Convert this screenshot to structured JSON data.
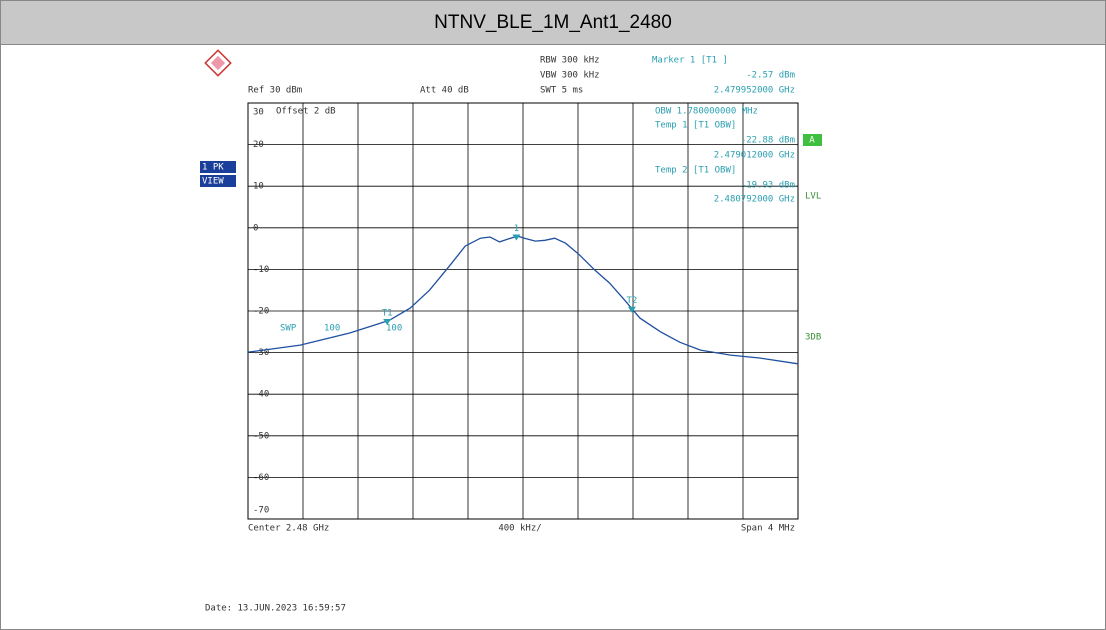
{
  "chart_data": {
    "type": "line",
    "title": "NTNV_BLE_1M_Ant1_2480",
    "xlim": [
      2.478,
      2.482
    ],
    "xticks": [
      2.478,
      2.4784,
      2.4788,
      2.4792,
      2.4796,
      2.48,
      2.4804,
      2.4808,
      2.4812,
      2.4816,
      2.482
    ],
    "ylim": [
      -70,
      30
    ],
    "yticks": [
      30,
      20,
      10,
      0,
      -10,
      -20,
      -30,
      -40,
      -50,
      -60,
      -70
    ],
    "grid": true,
    "series": [
      {
        "color": "#1f4fa0",
        "x": [
          2.478,
          2.47838,
          2.47874,
          2.47903,
          2.47918,
          2.47932,
          2.47947,
          2.47958,
          2.47969,
          2.47976,
          2.47983,
          2.47991,
          2.47996,
          2.48001,
          2.48009,
          2.48016,
          2.48023,
          2.48031,
          2.48041,
          2.48052,
          2.48063,
          2.48074,
          2.48085,
          2.481,
          2.48114,
          2.48129,
          2.48151,
          2.48172,
          2.482
        ],
        "values": [
          -29.9,
          -28.2,
          -25.3,
          -22.2,
          -19.3,
          -15,
          -9,
          -4.4,
          -2.5,
          -2.2,
          -3.4,
          -2.5,
          -2,
          -2.5,
          -3.2,
          -3,
          -2.5,
          -3.7,
          -6.5,
          -10.1,
          -13.3,
          -17.4,
          -21.7,
          -25,
          -27.5,
          -29.4,
          -30.6,
          -31.3,
          -32.7
        ]
      }
    ],
    "markers": [
      {
        "label": "1",
        "x": 2.479952,
        "y": -2.57
      },
      {
        "label": "T1",
        "x": 2.479012,
        "y": -22.88
      },
      {
        "label": "T2",
        "x": 2.480792,
        "y": -19.93
      }
    ],
    "annotations": [
      "RBW 300 kHz",
      "VBW 300 kHz",
      "SWT 5 ms",
      "Ref 30 dBm",
      "Att 40 dB",
      "Marker 1 [T1 ]",
      "-2.57 dBm",
      "2.479952000 GHz",
      "OBW 1.780000000 MHz",
      "Temp 1 [T1 OBW]",
      "-22.88 dBm",
      "2.479012000 GHz",
      "Temp 2 [T1 OBW]",
      "-19.93 dBm",
      "2.480792000 GHz",
      "Offset 2 dB",
      "400 kHz/",
      "Center 2.48 GHz",
      "Span 4 MHz",
      "SWP",
      "100",
      "100",
      "1 PK",
      "VIEW",
      "A",
      "LVL",
      "3DB",
      "Date: 13.JUN.2023 16:59:57"
    ]
  }
}
